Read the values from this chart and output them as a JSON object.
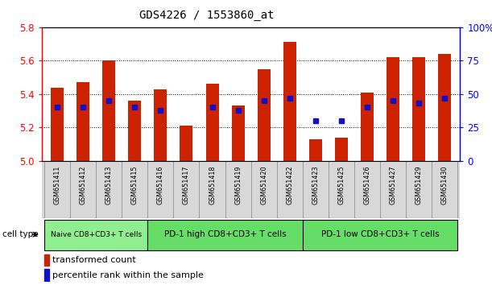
{
  "title": "GDS4226 / 1553860_at",
  "samples": [
    "GSM651411",
    "GSM651412",
    "GSM651413",
    "GSM651415",
    "GSM651416",
    "GSM651417",
    "GSM651418",
    "GSM651419",
    "GSM651420",
    "GSM651422",
    "GSM651423",
    "GSM651425",
    "GSM651426",
    "GSM651427",
    "GSM651429",
    "GSM651430"
  ],
  "red_values": [
    5.44,
    5.47,
    5.6,
    5.36,
    5.43,
    5.21,
    5.46,
    5.33,
    5.55,
    5.71,
    5.13,
    5.14,
    5.41,
    5.62,
    5.62,
    5.64
  ],
  "blue_pct": [
    40,
    40,
    45,
    40,
    38,
    null,
    40,
    38,
    45,
    47,
    30,
    30,
    40,
    45,
    43,
    47
  ],
  "ymin": 5.0,
  "ymax": 5.8,
  "yticks": [
    5.0,
    5.2,
    5.4,
    5.6,
    5.8
  ],
  "right_ytick_labels": [
    "0",
    "25",
    "50",
    "75",
    "100%"
  ],
  "groups": [
    {
      "label": "Naive CD8+CD3+ T cells",
      "start": 0,
      "end": 4
    },
    {
      "label": "PD-1 high CD8+CD3+ T cells",
      "start": 4,
      "end": 10
    },
    {
      "label": "PD-1 low CD8+CD3+ T cells",
      "start": 10,
      "end": 16
    }
  ],
  "group_colors": [
    "#90EE90",
    "#66DD66",
    "#66DD66"
  ],
  "bar_color": "#CC2200",
  "blue_color": "#1111CC",
  "bar_width": 0.5,
  "blue_marker_size": 5,
  "legend_red_label": "transformed count",
  "legend_blue_label": "percentile rank within the sample",
  "cell_type_label": "cell type"
}
